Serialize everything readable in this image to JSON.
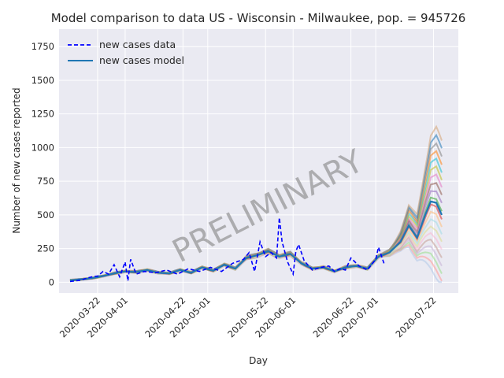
{
  "chart_data": {
    "type": "line",
    "title": "Model comparison to data US - Wisconsin - Milwaukee, pop. = 945726",
    "xlabel": "Day",
    "ylabel": "Number of new cases reported",
    "x_start": "2020-03-12",
    "x_end": "2020-07-25",
    "xlim": [
      "2020-03-08",
      "2020-07-31"
    ],
    "ylim": [
      -80,
      1880
    ],
    "x_ticks": [
      "2020-03-22",
      "2020-04-01",
      "2020-04-22",
      "2020-05-01",
      "2020-05-22",
      "2020-06-01",
      "2020-06-22",
      "2020-07-01",
      "2020-07-22"
    ],
    "y_ticks": [
      0,
      250,
      500,
      750,
      1000,
      1250,
      1500,
      1750
    ],
    "grid": true,
    "legend_location": "upper left",
    "watermark": "PRELIMINARY",
    "series": [
      {
        "name": "new cases data",
        "style": "dashed",
        "color": "#0000ff",
        "x": [
          "2020-03-12",
          "2020-03-14",
          "2020-03-16",
          "2020-03-18",
          "2020-03-20",
          "2020-03-22",
          "2020-03-24",
          "2020-03-26",
          "2020-03-28",
          "2020-03-30",
          "2020-04-01",
          "2020-04-02",
          "2020-04-03",
          "2020-04-05",
          "2020-04-08",
          "2020-04-12",
          "2020-04-16",
          "2020-04-20",
          "2020-04-24",
          "2020-04-28",
          "2020-05-02",
          "2020-05-06",
          "2020-05-10",
          "2020-05-14",
          "2020-05-16",
          "2020-05-18",
          "2020-05-20",
          "2020-05-22",
          "2020-05-24",
          "2020-05-26",
          "2020-05-27",
          "2020-05-28",
          "2020-05-30",
          "2020-06-01",
          "2020-06-02",
          "2020-06-03",
          "2020-06-05",
          "2020-06-08",
          "2020-06-11",
          "2020-06-14",
          "2020-06-16",
          "2020-06-18",
          "2020-06-20",
          "2020-06-22",
          "2020-06-25",
          "2020-06-28",
          "2020-07-01",
          "2020-07-02",
          "2020-07-04"
        ],
        "y": [
          5,
          10,
          15,
          30,
          40,
          45,
          80,
          60,
          130,
          40,
          150,
          10,
          170,
          60,
          80,
          70,
          90,
          60,
          100,
          80,
          110,
          80,
          140,
          170,
          220,
          80,
          300,
          190,
          220,
          180,
          480,
          300,
          150,
          60,
          230,
          280,
          160,
          90,
          110,
          120,
          80,
          100,
          90,
          180,
          120,
          90,
          170,
          260,
          140
        ]
      },
      {
        "name": "new cases model",
        "style": "solid",
        "color": "#1f77b4",
        "x": [
          "2020-03-12",
          "2020-03-16",
          "2020-03-20",
          "2020-03-24",
          "2020-03-28",
          "2020-04-01",
          "2020-04-05",
          "2020-04-09",
          "2020-04-13",
          "2020-04-17",
          "2020-04-21",
          "2020-04-25",
          "2020-04-29",
          "2020-05-03",
          "2020-05-07",
          "2020-05-11",
          "2020-05-15",
          "2020-05-19",
          "2020-05-23",
          "2020-05-27",
          "2020-05-31",
          "2020-06-04",
          "2020-06-08",
          "2020-06-12",
          "2020-06-16",
          "2020-06-20",
          "2020-06-24",
          "2020-06-28",
          "2020-07-02",
          "2020-07-06",
          "2020-07-10",
          "2020-07-13",
          "2020-07-16",
          "2020-07-19",
          "2020-07-21",
          "2020-07-23",
          "2020-07-25"
        ],
        "y": [
          15,
          20,
          30,
          45,
          65,
          80,
          75,
          90,
          70,
          65,
          90,
          70,
          110,
          85,
          130,
          100,
          180,
          200,
          230,
          190,
          210,
          140,
          100,
          110,
          80,
          110,
          120,
          100,
          190,
          220,
          300,
          420,
          330,
          500,
          600,
          590,
          500
        ]
      }
    ]
  }
}
